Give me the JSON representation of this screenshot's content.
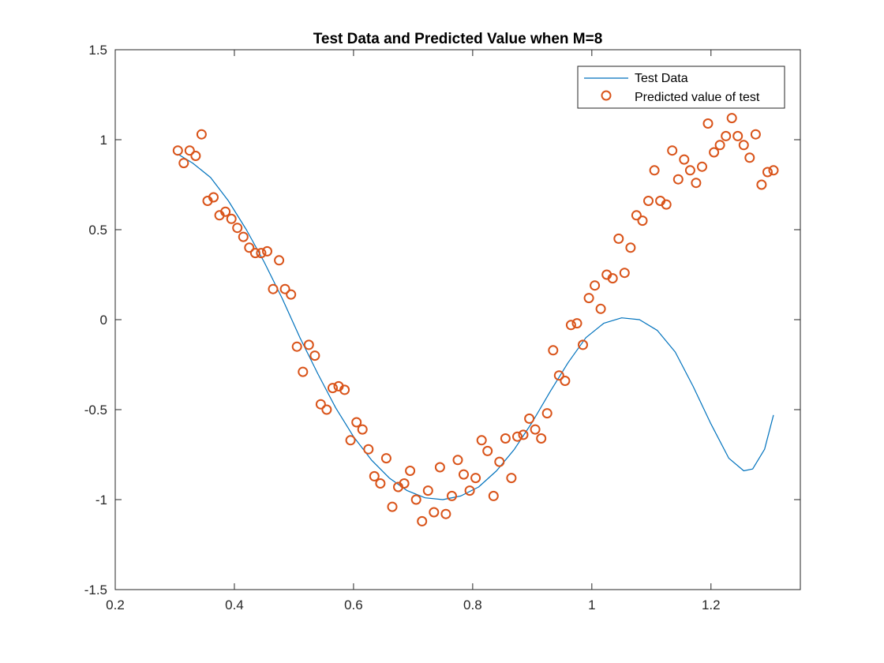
{
  "chart_data": {
    "type": "line",
    "title": "Test Data and Predicted Value when M=8",
    "xlabel": "",
    "ylabel": "",
    "xlim": [
      0.2,
      1.35
    ],
    "ylim": [
      -1.5,
      1.5
    ],
    "xticks": [
      0.2,
      0.4,
      0.6,
      0.8,
      1.0,
      1.2
    ],
    "xtick_labels": [
      "0.2",
      "0.4",
      "0.6",
      "0.8",
      "1",
      "1.2"
    ],
    "yticks": [
      -1.5,
      -1.0,
      -0.5,
      0.0,
      0.5,
      1.0,
      1.5
    ],
    "ytick_labels": [
      "-1.5",
      "-1",
      "-0.5",
      "0",
      "0.5",
      "1",
      "1.5"
    ],
    "grid": false,
    "legend_position": "top-right",
    "series": [
      {
        "name": "Test Data",
        "kind": "line",
        "color": "#0072bd",
        "x": [
          0.305,
          0.33,
          0.36,
          0.39,
          0.42,
          0.45,
          0.48,
          0.51,
          0.54,
          0.57,
          0.6,
          0.63,
          0.66,
          0.69,
          0.72,
          0.75,
          0.78,
          0.81,
          0.84,
          0.87,
          0.9,
          0.93,
          0.96,
          0.99,
          1.02,
          1.05,
          1.08,
          1.11,
          1.14,
          1.17,
          1.2,
          1.23,
          1.255,
          1.27,
          1.29,
          1.305
        ],
        "y": [
          0.92,
          0.87,
          0.79,
          0.66,
          0.5,
          0.32,
          0.12,
          -0.1,
          -0.3,
          -0.49,
          -0.65,
          -0.78,
          -0.88,
          -0.95,
          -0.99,
          -1.0,
          -0.98,
          -0.93,
          -0.84,
          -0.72,
          -0.57,
          -0.4,
          -0.24,
          -0.1,
          -0.02,
          0.01,
          0.0,
          -0.06,
          -0.18,
          -0.37,
          -0.58,
          -0.77,
          -0.84,
          -0.83,
          -0.72,
          -0.53
        ]
      },
      {
        "name": "Predicted value of test",
        "kind": "scatter",
        "marker": "circle",
        "color": "#d95319",
        "x": [
          0.305,
          0.315,
          0.325,
          0.335,
          0.345,
          0.355,
          0.365,
          0.375,
          0.385,
          0.395,
          0.405,
          0.415,
          0.425,
          0.435,
          0.445,
          0.455,
          0.465,
          0.475,
          0.485,
          0.495,
          0.505,
          0.515,
          0.525,
          0.535,
          0.545,
          0.555,
          0.565,
          0.575,
          0.585,
          0.595,
          0.605,
          0.615,
          0.625,
          0.635,
          0.645,
          0.655,
          0.665,
          0.675,
          0.685,
          0.695,
          0.705,
          0.715,
          0.725,
          0.735,
          0.745,
          0.755,
          0.765,
          0.775,
          0.785,
          0.795,
          0.805,
          0.815,
          0.825,
          0.835,
          0.845,
          0.855,
          0.865,
          0.875,
          0.885,
          0.895,
          0.905,
          0.915,
          0.925,
          0.935,
          0.945,
          0.955,
          0.965,
          0.975,
          0.985,
          0.995,
          1.005,
          1.015,
          1.025,
          1.035,
          1.045,
          1.055,
          1.065,
          1.075,
          1.085,
          1.095,
          1.105,
          1.115,
          1.125,
          1.135,
          1.145,
          1.155,
          1.165,
          1.175,
          1.185,
          1.195,
          1.205,
          1.215,
          1.225,
          1.235,
          1.245,
          1.255,
          1.265,
          1.275,
          1.285,
          1.295,
          1.305
        ],
        "y": [
          0.94,
          0.87,
          0.94,
          0.91,
          1.03,
          0.66,
          0.68,
          0.58,
          0.6,
          0.56,
          0.51,
          0.46,
          0.4,
          0.37,
          0.37,
          0.38,
          0.17,
          0.33,
          0.17,
          0.14,
          -0.15,
          -0.29,
          -0.14,
          -0.2,
          -0.47,
          -0.5,
          -0.38,
          -0.37,
          -0.39,
          -0.67,
          -0.57,
          -0.61,
          -0.72,
          -0.87,
          -0.91,
          -0.77,
          -1.04,
          -0.93,
          -0.91,
          -0.84,
          -1.0,
          -1.12,
          -0.95,
          -1.07,
          -0.82,
          -1.08,
          -0.98,
          -0.78,
          -0.86,
          -0.95,
          -0.88,
          -0.67,
          -0.73,
          -0.98,
          -0.79,
          -0.66,
          -0.88,
          -0.65,
          -0.64,
          -0.55,
          -0.61,
          -0.66,
          -0.52,
          -0.17,
          -0.31,
          -0.34,
          -0.03,
          -0.02,
          -0.14,
          0.12,
          0.19,
          0.06,
          0.25,
          0.23,
          0.45,
          0.26,
          0.4,
          0.58,
          0.55,
          0.66,
          0.83,
          0.66,
          0.64,
          0.94,
          0.78,
          0.89,
          0.83,
          0.76,
          0.85,
          1.09,
          0.93,
          0.97,
          1.02,
          1.12,
          1.02,
          0.97,
          0.9,
          1.03,
          0.75,
          0.82,
          0.83
        ]
      }
    ]
  }
}
